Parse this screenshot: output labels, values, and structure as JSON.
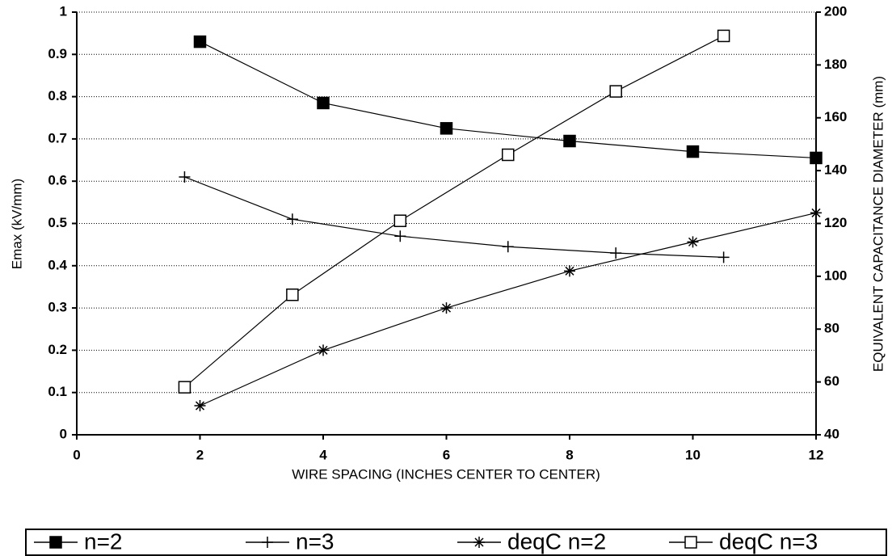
{
  "chart_data": {
    "type": "line",
    "xlabel": "WIRE SPACING (INCHES CENTER TO CENTER)",
    "ylabel": "Emax (kV/mm)",
    "y2label": "EQUIVALENT CAPACITANCE DIAMETER (mm)",
    "xlim": [
      0,
      12
    ],
    "xticks": [
      0,
      2,
      4,
      6,
      8,
      10,
      12
    ],
    "ylim": [
      0,
      1
    ],
    "yticks": [
      0,
      0.1,
      0.2,
      0.3,
      0.4,
      0.5,
      0.6,
      0.7,
      0.8,
      0.9,
      1
    ],
    "y2lim": [
      40,
      200
    ],
    "y2ticks": [
      40,
      60,
      80,
      100,
      120,
      140,
      160,
      180,
      200
    ],
    "grid": true,
    "legend": "bottom",
    "series": [
      {
        "name": "n=2",
        "color": "#000000",
        "marker": "square-filled",
        "x": [
          2,
          4,
          6,
          8,
          10,
          12
        ],
        "values": [
          0.93,
          0.785,
          0.725,
          0.695,
          0.67,
          0.655
        ]
      },
      {
        "name": "n=3",
        "color": "#000000",
        "marker": "plus",
        "x": [
          1.75,
          3.5,
          5.25,
          7,
          8.75,
          10.5
        ],
        "values": [
          0.61,
          0.51,
          0.47,
          0.445,
          0.43,
          0.42
        ]
      },
      {
        "name": "deqC n=2",
        "color": "#000000",
        "marker": "star",
        "axis": "y2",
        "x": [
          2,
          4,
          6,
          8,
          10,
          12
        ],
        "values": [
          51,
          72,
          88,
          102,
          113,
          124
        ]
      },
      {
        "name": "deqC n=3",
        "color": "#000000",
        "marker": "square-open",
        "axis": "y2",
        "x": [
          1.75,
          3.5,
          5.25,
          7,
          8.75,
          10.5
        ],
        "values": [
          58,
          93,
          121,
          146,
          170,
          191
        ]
      }
    ]
  }
}
